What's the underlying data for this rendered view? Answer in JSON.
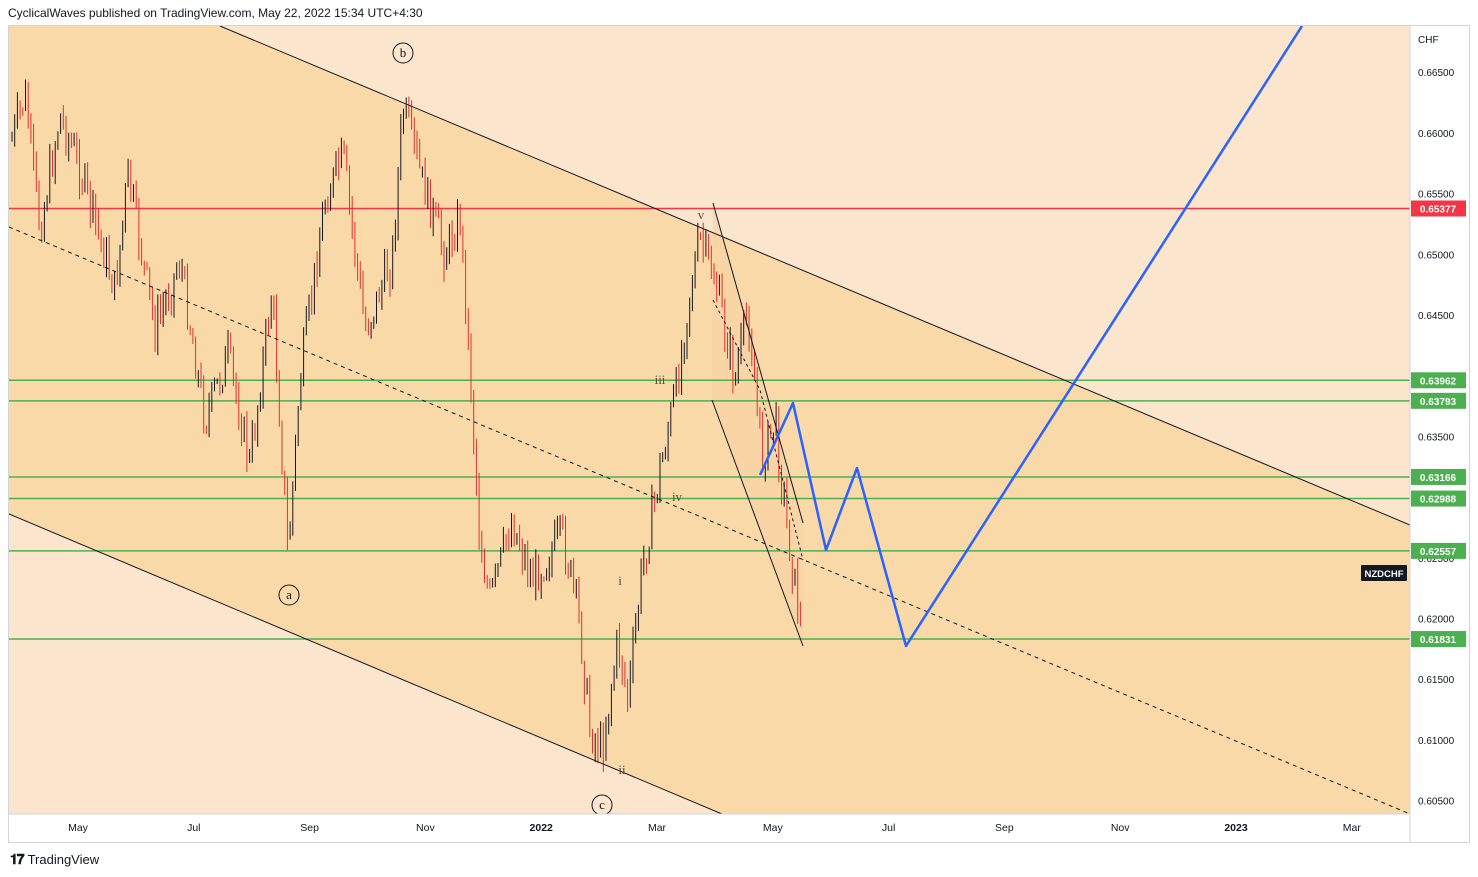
{
  "header": {
    "text": "CyclicalWaves published on TradingView.com, May 22, 2022 15:34 UTC+4:30"
  },
  "footer": {
    "logo_icon": "tradingview-logo-icon",
    "brand": "TradingView"
  },
  "chart_data": {
    "type": "candlestick",
    "symbol": "NZDCHF",
    "currency": "CHF",
    "y_axis_ticks": [
      "0.66500",
      "0.66000",
      "0.65500",
      "0.65000",
      "0.64500",
      "0.64000",
      "0.63500",
      "0.63000",
      "0.62500",
      "0.62000",
      "0.61500",
      "0.61000",
      "0.60500"
    ],
    "x_axis_ticks": [
      "May",
      "Jul",
      "Sep",
      "Nov",
      "2022",
      "Mar",
      "May",
      "Jul",
      "Sep",
      "Nov",
      "2023",
      "Mar"
    ],
    "ylim": [
      0.6039,
      0.6688
    ],
    "price_levels": [
      {
        "label": "0.65377",
        "value": 0.65377,
        "color": "#f23645"
      },
      {
        "label": "0.63962",
        "value": 0.63962,
        "color": "#4caf50"
      },
      {
        "label": "0.63793",
        "value": 0.63793,
        "color": "#4caf50"
      },
      {
        "label": "0.63166",
        "value": 0.63166,
        "color": "#4caf50"
      },
      {
        "label": "0.62988",
        "value": 0.62988,
        "color": "#4caf50"
      },
      {
        "label": "0.62557",
        "value": 0.62557,
        "color": "#4caf50"
      },
      {
        "label": "0.61831",
        "value": 0.61831,
        "color": "#4caf50"
      }
    ],
    "symbol_badge": "NZDCHF",
    "wave_labels": [
      {
        "text": "a",
        "circled": true
      },
      {
        "text": "b",
        "circled": true
      },
      {
        "text": "c",
        "circled": true
      },
      {
        "text": "i",
        "circled": false
      },
      {
        "text": "ii",
        "circled": false
      },
      {
        "text": "iii",
        "circled": false
      },
      {
        "text": "iv",
        "circled": false
      },
      {
        "text": "v",
        "circled": false
      }
    ],
    "colors": {
      "channel_fill": "#fad9a8",
      "outer_fill": "#fbe5cc",
      "bull_candle": "#131722",
      "bear_candle": "#e03030",
      "projection": "#2962ff",
      "resistance": "#f23645",
      "support": "#4caf50"
    }
  }
}
